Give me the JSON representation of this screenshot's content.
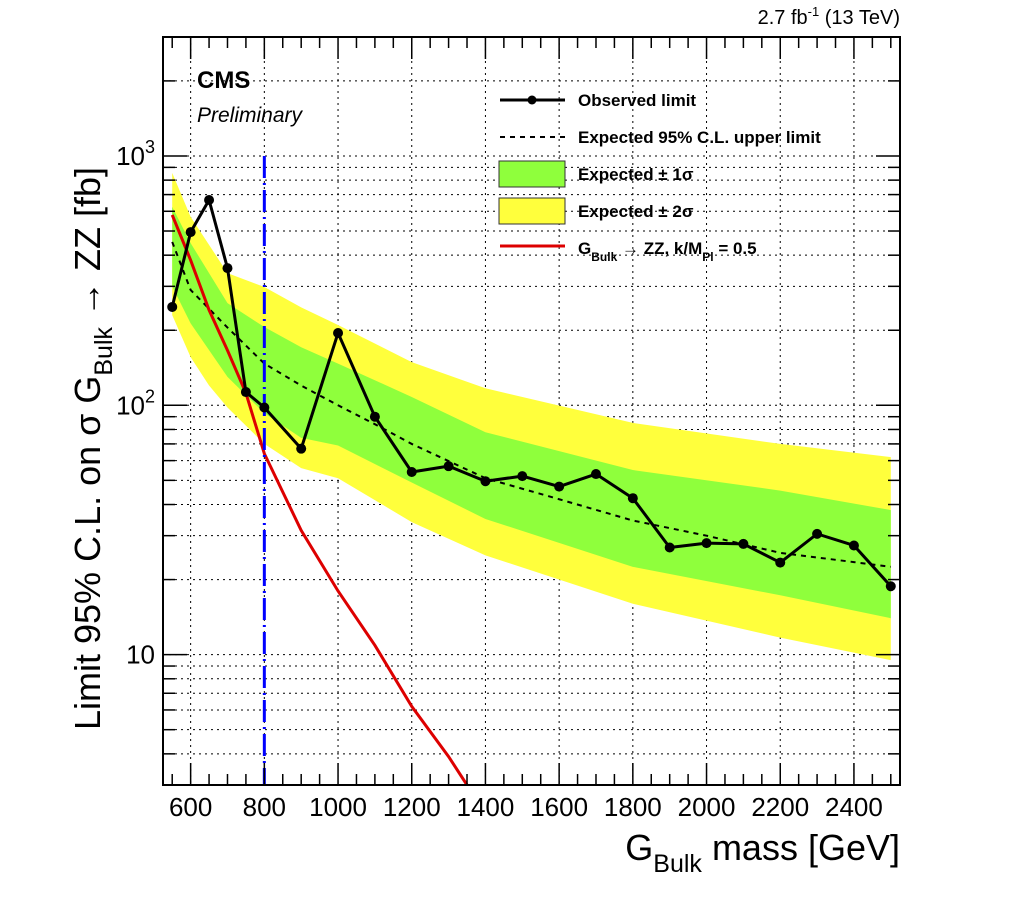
{
  "header": {
    "lumi_label": "2.7 fb",
    "lumi_sup": "-1",
    "energy_label": " (13 TeV)"
  },
  "badge": {
    "experiment": "CMS",
    "status": "Preliminary"
  },
  "chart_data": {
    "type": "line",
    "xlabel": {
      "main": "G",
      "sub": "Bulk",
      "rest": " mass [GeV]"
    },
    "ylabel": {
      "main": "Limit 95% C.L. on σ G",
      "sub": "Bulk",
      "rest": " → ZZ [fb]"
    },
    "xlim": [
      525,
      2525
    ],
    "ylim": [
      3,
      3000
    ],
    "yscale": "log",
    "grid": true,
    "legend_placement": "top-right",
    "x_ticks": [
      600,
      800,
      1000,
      1200,
      1400,
      1600,
      1800,
      2000,
      2200,
      2400
    ],
    "x_tick_labels": [
      "600",
      "800",
      "1000",
      "1200",
      "1400",
      "1600",
      "1800",
      "2000",
      "2200",
      "2400"
    ],
    "y_ticks": [
      {
        "value": 10,
        "label": "10",
        "sup": ""
      },
      {
        "value": 100,
        "label": "10",
        "sup": "2"
      },
      {
        "value": 1000,
        "label": "10",
        "sup": "3"
      }
    ],
    "colors": {
      "observed": "#000000",
      "expected": "#000000",
      "band1": "#8fff3c",
      "band2": "#ffff3c",
      "theory": "#dd0000",
      "marker_line": "#0000ff"
    },
    "observed": {
      "name": "Observed limit",
      "x": [
        550,
        600,
        650,
        700,
        750,
        800,
        900,
        1000,
        1100,
        1200,
        1300,
        1400,
        1500,
        1600,
        1700,
        1800,
        1900,
        2000,
        2100,
        2200,
        2300,
        2400,
        2500
      ],
      "y": [
        248,
        495,
        666,
        355,
        113,
        98,
        67,
        195,
        90,
        54,
        57,
        49.6,
        52,
        47.2,
        53,
        42.4,
        26.9,
        28,
        27.8,
        23.4,
        30.5,
        27.4,
        18.8
      ]
    },
    "expected": {
      "name": "Expected 95% C.L. upper limit",
      "x": [
        550,
        600,
        700,
        800,
        900,
        1000,
        1100,
        1200,
        1400,
        1600,
        1800,
        2000,
        2200,
        2400,
        2500
      ],
      "y": [
        452,
        290,
        205,
        147,
        120,
        100,
        84,
        70,
        51,
        42,
        34.5,
        30,
        25.6,
        23.5,
        22.5
      ]
    },
    "band_1sigma": {
      "name": "Expected ± 1σ",
      "x": [
        550,
        600,
        700,
        800,
        900,
        1000,
        1200,
        1400,
        1800,
        2200,
        2500
      ],
      "low": [
        300,
        213,
        130,
        93,
        74,
        69,
        49,
        35,
        22.5,
        17.3,
        14
      ],
      "high": [
        625,
        447,
        257,
        206,
        171,
        147,
        108,
        78,
        55,
        45.5,
        38
      ]
    },
    "band_2sigma": {
      "name": "Expected ± 2σ",
      "x": [
        550,
        600,
        650,
        700,
        800,
        900,
        1000,
        1200,
        1400,
        1800,
        2200,
        2500
      ],
      "low": [
        230,
        156,
        120,
        98,
        70,
        56,
        51,
        34,
        25,
        16,
        11.7,
        9.5
      ],
      "high": [
        855,
        570,
        440,
        339,
        298,
        247,
        210,
        149,
        117,
        85,
        70,
        62
      ]
    },
    "theory": {
      "name": {
        "main": "G",
        "sub": "Bulk",
        "mid": " → ZZ, k/M",
        "sub2": "Pl",
        "rest": " = 0.5"
      },
      "x": [
        550,
        600,
        650,
        700,
        750,
        800,
        900,
        1000,
        1100,
        1200,
        1300,
        1350
      ],
      "y": [
        580,
        382,
        241,
        166,
        112,
        64,
        31.5,
        18,
        10.9,
        6.2,
        3.9,
        3
      ]
    },
    "vertical_marker": {
      "x": 800,
      "ymax": 1000
    }
  }
}
